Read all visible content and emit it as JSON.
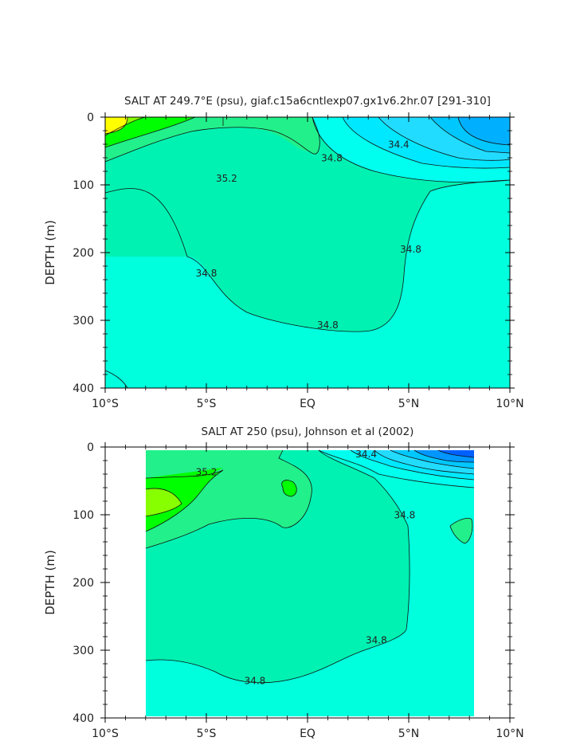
{
  "chart_data": [
    {
      "type": "contour",
      "title": "SALT AT 249.7°E (psu), giaf.c15a6cntlexp07.gx1v6.2hr.07 [291-310]",
      "xlabel": "",
      "ylabel": "DEPTH (m)",
      "xlim": [
        -10,
        10
      ],
      "ylim": [
        400,
        0
      ],
      "x_ticks": [
        {
          "value": -10,
          "label": "10°S"
        },
        {
          "value": -5,
          "label": "5°S"
        },
        {
          "value": 0,
          "label": "EQ"
        },
        {
          "value": 5,
          "label": "5°N"
        },
        {
          "value": 10,
          "label": "10°N"
        }
      ],
      "y_ticks": [
        {
          "value": 0,
          "label": "0"
        },
        {
          "value": 100,
          "label": "100"
        },
        {
          "value": 200,
          "label": "200"
        },
        {
          "value": 300,
          "label": "300"
        },
        {
          "value": 400,
          "label": "400"
        }
      ],
      "contour_labels": [
        {
          "text": "34.4",
          "x": 4.5,
          "y": 45
        },
        {
          "text": "34.8",
          "x": 1.2,
          "y": 65
        },
        {
          "text": "35.2",
          "x": -4.0,
          "y": 95
        },
        {
          "text": "34.8",
          "x": 5.1,
          "y": 200
        },
        {
          "text": "34.8",
          "x": -5.0,
          "y": 235
        },
        {
          "text": "34.8",
          "x": 1.0,
          "y": 312
        }
      ]
    },
    {
      "type": "contour",
      "title": "SALT AT 250 (psu), Johnson et al (2002)",
      "xlabel": "",
      "ylabel": "DEPTH (m)",
      "xlim": [
        -10,
        10
      ],
      "ylim": [
        400,
        0
      ],
      "x_ticks": [
        {
          "value": -10,
          "label": "10°S"
        },
        {
          "value": -5,
          "label": "5°S"
        },
        {
          "value": 0,
          "label": "EQ"
        },
        {
          "value": 5,
          "label": "5°N"
        },
        {
          "value": 10,
          "label": "10°N"
        }
      ],
      "y_ticks": [
        {
          "value": 0,
          "label": "0"
        },
        {
          "value": 100,
          "label": "100"
        },
        {
          "value": 200,
          "label": "200"
        },
        {
          "value": 300,
          "label": "300"
        },
        {
          "value": 400,
          "label": "400"
        }
      ],
      "contour_labels": [
        {
          "text": "35.2",
          "x": -5.0,
          "y": 42
        },
        {
          "text": "34.4",
          "x": 2.9,
          "y": 15
        },
        {
          "text": "34.8",
          "x": 4.8,
          "y": 105
        },
        {
          "text": "34.8",
          "x": 3.4,
          "y": 290
        },
        {
          "text": "34.8",
          "x": -2.6,
          "y": 350
        }
      ]
    }
  ]
}
